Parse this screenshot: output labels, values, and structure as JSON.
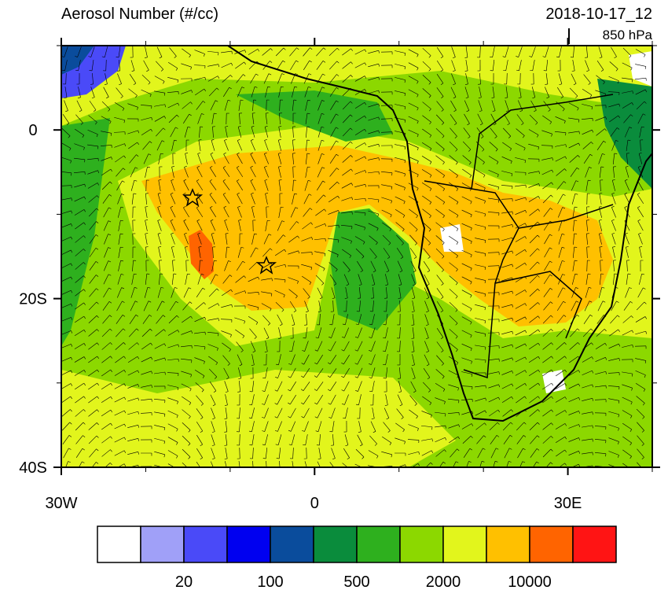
{
  "map": {
    "title": "Aerosol Number (#/cc)",
    "time": "2018-10-17_12",
    "level": "850 hPa",
    "xlim": [
      -30,
      40
    ],
    "ylim": [
      -40,
      10
    ],
    "xticks": [
      {
        "value": -30,
        "label": "30W"
      },
      0,
      {
        "value": 30,
        "label": "30E"
      }
    ],
    "yticks": [
      0,
      {
        "value": -20,
        "label": "20S"
      },
      {
        "value": -40,
        "label": "40S"
      }
    ],
    "xminor": [
      -20,
      -10,
      10,
      20,
      40
    ],
    "yminor": [
      10,
      -10,
      -30
    ],
    "colorbar": {
      "colors": [
        "#ffffff",
        "#a0a0f8",
        "#4a4af8",
        "#0000f0",
        "#0a4c9c",
        "#0a8c3c",
        "#2eb01e",
        "#8cd800",
        "#e2f51c",
        "#ffc000",
        "#ff6400",
        "#ff1414"
      ],
      "labels": [
        null,
        "20",
        null,
        "100",
        null,
        "500",
        null,
        "2000",
        null,
        "10000",
        null
      ]
    }
  }
}
